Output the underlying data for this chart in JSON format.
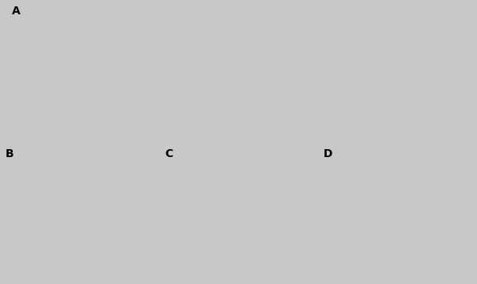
{
  "background_color": "#c8c8c8",
  "land_color": "#ffffff",
  "range_color": "#606060",
  "border_color": "#444444",
  "label_A": "A",
  "label_B": "B",
  "label_C": "C",
  "label_D": "D",
  "label_fontsize": 10,
  "label_fontweight": "bold",
  "fig_width": 6.0,
  "fig_height": 3.58,
  "dpi": 100,
  "panel_A_extent": [
    -178,
    178,
    -58,
    83
  ],
  "panel_BCD_extent": [
    -170,
    -52,
    6,
    83
  ]
}
